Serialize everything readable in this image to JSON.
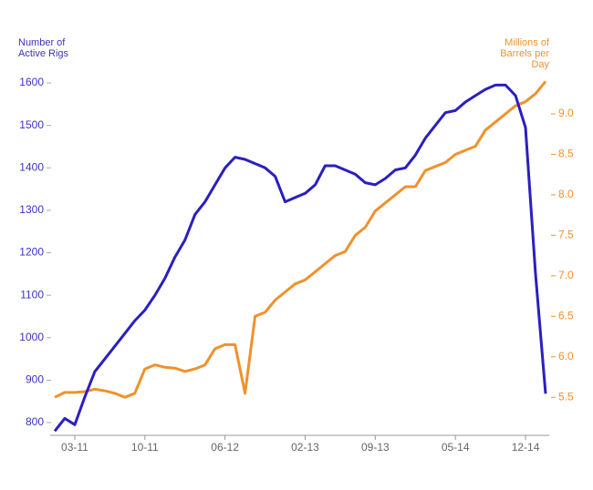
{
  "chart_data": {
    "type": "line",
    "y_label": "Number of Active Rigs",
    "y2_label": "Millions of Barrels per Day",
    "x": [
      "01-11",
      "02-11",
      "03-11",
      "04-11",
      "05-11",
      "06-11",
      "07-11",
      "08-11",
      "09-11",
      "10-11",
      "11-11",
      "12-11",
      "01-12",
      "02-12",
      "03-12",
      "04-12",
      "05-12",
      "06-12",
      "07-12",
      "08-12",
      "09-12",
      "10-12",
      "11-12",
      "12-12",
      "01-13",
      "02-13",
      "03-13",
      "04-13",
      "05-13",
      "06-13",
      "07-13",
      "08-13",
      "09-13",
      "10-13",
      "11-13",
      "12-13",
      "01-14",
      "02-14",
      "03-14",
      "04-14",
      "05-14",
      "06-14",
      "07-14",
      "08-14",
      "09-14",
      "10-14",
      "11-14",
      "12-14",
      "01-15",
      "02-15"
    ],
    "xticks": [
      "03-11",
      "10-11",
      "06-12",
      "02-13",
      "09-13",
      "05-14",
      "12-14"
    ],
    "series": [
      {
        "color": "#2a1fbf",
        "values": [
          780,
          810,
          795,
          860,
          920,
          950,
          980,
          1010,
          1040,
          1065,
          1100,
          1140,
          1190,
          1230,
          1290,
          1320,
          1360,
          1400,
          1425,
          1420,
          1410,
          1400,
          1380,
          1320,
          1330,
          1340,
          1360,
          1405,
          1405,
          1395,
          1385,
          1365,
          1360,
          1375,
          1395,
          1400,
          1430,
          1470,
          1500,
          1530,
          1535,
          1555,
          1570,
          1585,
          1595,
          1595,
          1570,
          1495,
          1150,
          868
        ]
      },
      {
        "color": "#f0912d",
        "axis": "y2",
        "values": [
          5.5,
          5.56,
          5.56,
          5.57,
          5.6,
          5.58,
          5.55,
          5.5,
          5.55,
          5.85,
          5.9,
          5.87,
          5.86,
          5.82,
          5.85,
          5.9,
          6.1,
          6.15,
          6.15,
          5.55,
          6.5,
          6.55,
          6.7,
          6.8,
          6.9,
          6.95,
          7.05,
          7.15,
          7.25,
          7.3,
          7.5,
          7.6,
          7.8,
          7.9,
          8.0,
          8.1,
          8.1,
          8.3,
          8.35,
          8.4,
          8.5,
          8.55,
          8.6,
          8.8,
          8.9,
          9.0,
          9.1,
          9.15,
          9.25,
          9.4
        ]
      }
    ],
    "ylim": [
      770,
      1613
    ],
    "yticks": [
      800,
      900,
      1000,
      1100,
      1200,
      1300,
      1400,
      1500,
      1600
    ],
    "y2lim": [
      5.03,
      9.45
    ],
    "y2ticks": [
      5.5,
      {
        "value": 6,
        "label": "6.0"
      },
      6.5,
      {
        "value": 7,
        "label": "7.0"
      },
      7.5,
      {
        "value": 8,
        "label": "8.0"
      },
      8.5,
      {
        "value": 9,
        "label": "9.0"
      }
    ]
  }
}
